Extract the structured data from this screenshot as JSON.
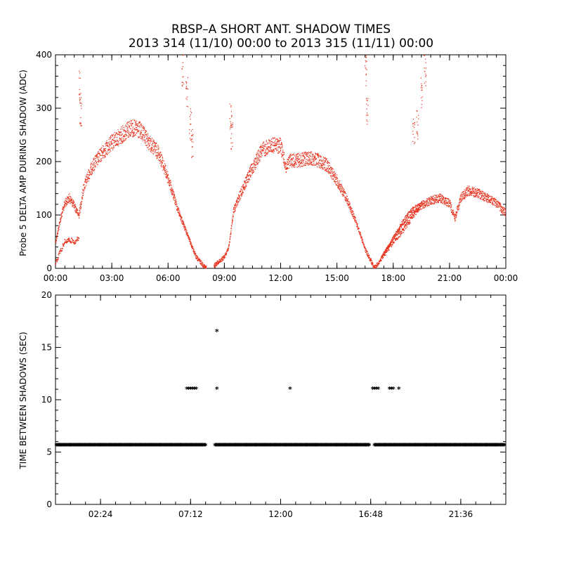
{
  "header": {
    "title": "RBSP–A SHORT ANT. SHADOW TIMES",
    "subtitle": "2013 314 (11/10) 00:00 to 2013 315 (11/11) 00:00"
  },
  "chart_data": [
    {
      "type": "scatter",
      "ylabel": "Probe 5 DELTA AMP DURING SHADOW (ADC)",
      "xlabel": "",
      "x_unit": "hours",
      "xlim": [
        0,
        24
      ],
      "ylim": [
        0,
        400
      ],
      "x_ticks": [
        0,
        3,
        6,
        9,
        12,
        15,
        18,
        21,
        24
      ],
      "x_tick_labels": [
        "00:00",
        "03:00",
        "06:00",
        "09:00",
        "12:00",
        "15:00",
        "18:00",
        "21:00",
        "00:00"
      ],
      "y_ticks": [
        0,
        100,
        200,
        300,
        400
      ],
      "y_tick_labels": [
        "0",
        "100",
        "200",
        "300",
        "400"
      ],
      "color": "#e8321e",
      "series": [
        {
          "x": [
            0.0,
            0.25,
            0.5,
            0.75,
            1.0,
            1.25,
            1.5,
            1.75,
            2.0,
            2.5,
            3.0,
            3.5,
            4.0,
            4.5,
            5.0,
            5.5,
            6.0,
            6.5,
            7.0,
            7.5,
            8.0,
            8.5,
            9.0,
            9.25,
            9.5,
            10.0,
            10.5,
            11.0,
            11.5,
            12.0,
            12.3,
            12.5,
            13.0,
            13.5,
            14.0,
            14.5,
            15.0,
            15.5,
            16.0,
            16.5,
            17.0,
            17.25,
            17.5,
            18.0,
            18.5,
            19.0,
            19.5,
            20.0,
            20.5,
            21.0,
            21.3,
            21.6,
            22.0,
            22.5,
            23.0,
            23.5,
            24.0
          ],
          "y": [
            50,
            95,
            130,
            140,
            125,
            105,
            160,
            185,
            205,
            230,
            250,
            265,
            280,
            275,
            250,
            230,
            180,
            120,
            70,
            25,
            5,
            10,
            25,
            45,
            115,
            160,
            200,
            235,
            245,
            245,
            200,
            215,
            215,
            220,
            215,
            205,
            175,
            140,
            95,
            40,
            5,
            15,
            30,
            60,
            90,
            115,
            125,
            135,
            140,
            130,
            100,
            140,
            155,
            150,
            140,
            130,
            110
          ]
        },
        {
          "x": [
            0.0,
            0.25,
            0.5,
            0.75,
            1.0,
            1.25,
            17.5,
            18.0,
            18.5,
            19.0,
            19.5
          ],
          "y": [
            15,
            35,
            55,
            58,
            55,
            60,
            30,
            55,
            75,
            100,
            125
          ]
        },
        {
          "x": [
            1.3,
            1.35,
            6.8,
            7.0,
            7.2,
            7.3,
            9.35,
            9.4,
            16.55,
            16.6,
            19.1,
            19.3,
            19.5,
            19.7
          ],
          "y": [
            370,
            320,
            400,
            360,
            300,
            260,
            310,
            280,
            400,
            320,
            290,
            300,
            360,
            400
          ]
        }
      ]
    },
    {
      "type": "scatter",
      "ylabel": "TIME BETWEEN SHADOWS (SEC)",
      "xlabel": "",
      "x_unit": "hours",
      "xlim": [
        0,
        24
      ],
      "ylim": [
        0,
        20
      ],
      "x_ticks": [
        2.4,
        7.2,
        12.0,
        16.8,
        21.6
      ],
      "x_tick_labels": [
        "02:24",
        "07:12",
        "12:00",
        "16:48",
        "21:36"
      ],
      "y_ticks": [
        0,
        5,
        10,
        15,
        20
      ],
      "y_tick_labels": [
        "0",
        "5",
        "10",
        "15",
        "20"
      ],
      "color": "#000000",
      "series": [
        {
          "x": [
            7.0,
            7.1,
            7.2,
            7.3,
            7.4,
            7.5,
            8.6,
            8.6,
            12.5,
            16.9,
            17.0,
            17.1,
            17.2,
            17.8,
            17.9,
            18.0,
            18.3
          ],
          "y": [
            11.0,
            11.0,
            11.0,
            11.0,
            11.0,
            11.0,
            11.0,
            16.5,
            11.0,
            11.0,
            11.0,
            11.0,
            11.0,
            11.0,
            11.0,
            11.0,
            11.0
          ]
        },
        {
          "x_ranges": [
            [
              0.05,
              8.0
            ],
            [
              8.5,
              16.3
            ],
            [
              16.3,
              16.75
            ],
            [
              17.0,
              23.95
            ]
          ],
          "y": 5.6
        }
      ]
    }
  ]
}
